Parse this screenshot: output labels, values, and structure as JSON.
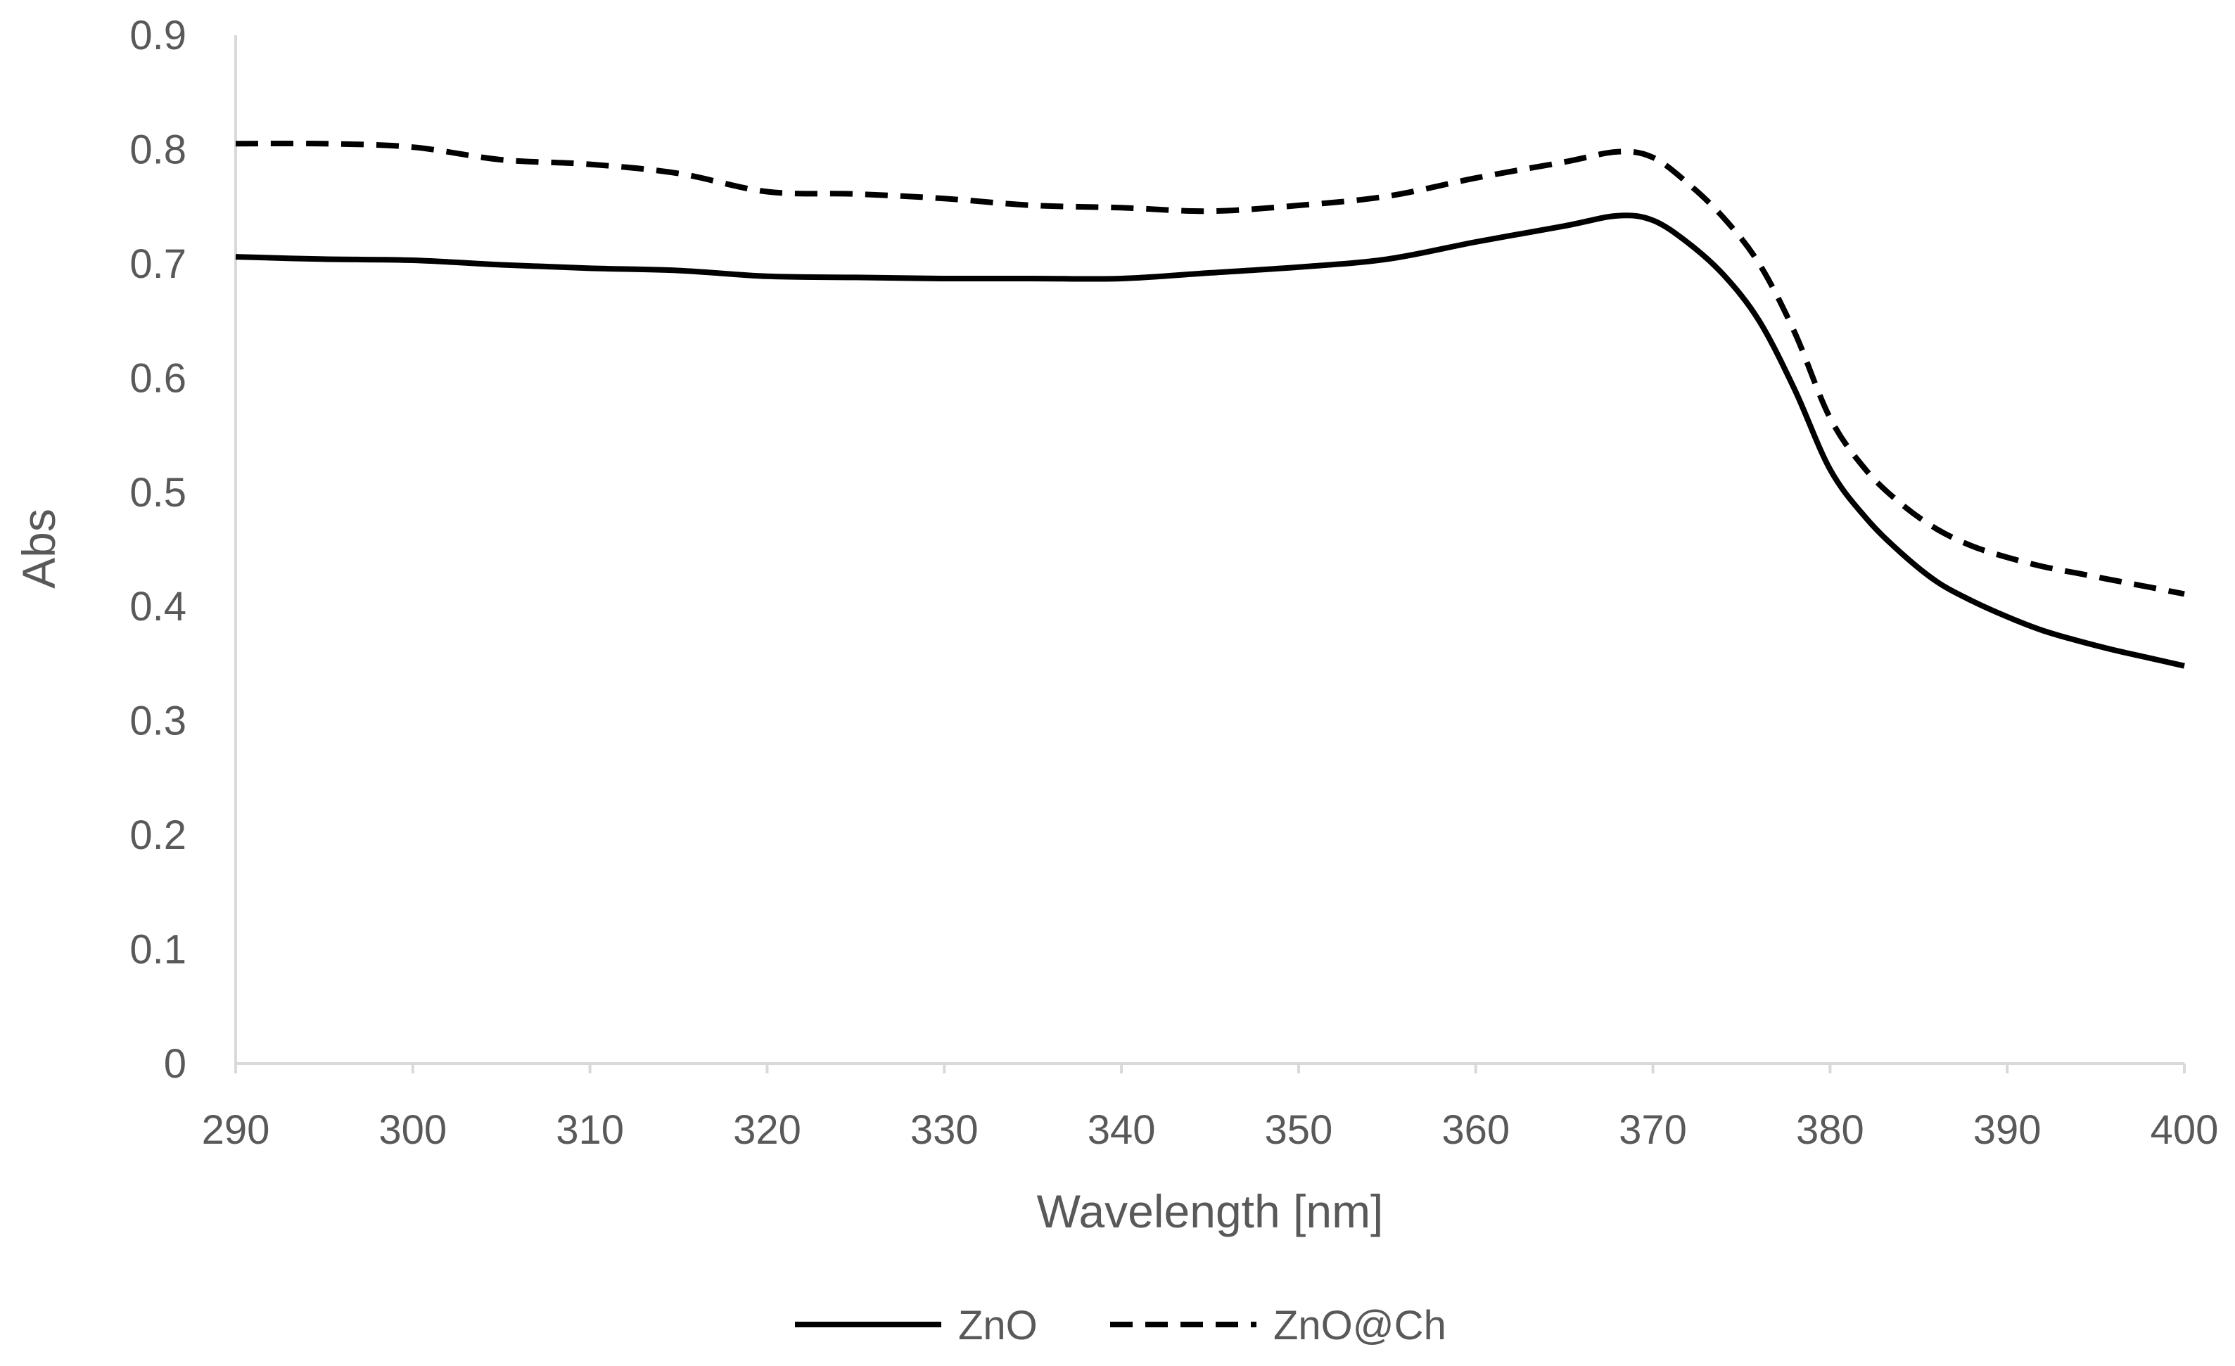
{
  "chart_data": {
    "type": "line",
    "title": "",
    "xlabel": "Wavelength [nm]",
    "ylabel": "Abs",
    "xlim": [
      290,
      400
    ],
    "ylim": [
      0,
      0.9
    ],
    "x_ticks": [
      290,
      300,
      310,
      320,
      330,
      340,
      350,
      360,
      370,
      380,
      390,
      400
    ],
    "y_ticks": [
      0,
      0.1,
      0.2,
      0.3,
      0.4,
      0.5,
      0.6,
      0.7,
      0.8,
      0.9
    ],
    "x_tick_labels": [
      "290",
      "300",
      "310",
      "320",
      "330",
      "340",
      "350",
      "360",
      "370",
      "380",
      "390",
      "400"
    ],
    "y_tick_labels": [
      "0",
      "0.1",
      "0.2",
      "0.3",
      "0.4",
      "0.5",
      "0.6",
      "0.7",
      "0.8",
      "0.9"
    ],
    "grid": false,
    "legend_position": "bottom",
    "series": [
      {
        "name": "ZnO",
        "style": "solid",
        "color": "#000000",
        "x": [
          290,
          295,
          300,
          305,
          310,
          315,
          320,
          325,
          330,
          335,
          340,
          345,
          350,
          355,
          360,
          365,
          368,
          370,
          372,
          374,
          376,
          378,
          380,
          382,
          384,
          386,
          388,
          390,
          392,
          394,
          396,
          398,
          400
        ],
        "y": [
          0.706,
          0.704,
          0.703,
          0.699,
          0.696,
          0.694,
          0.689,
          0.688,
          0.687,
          0.687,
          0.687,
          0.692,
          0.697,
          0.704,
          0.719,
          0.733,
          0.742,
          0.738,
          0.718,
          0.69,
          0.65,
          0.59,
          0.52,
          0.478,
          0.447,
          0.422,
          0.405,
          0.391,
          0.379,
          0.37,
          0.362,
          0.355,
          0.348
        ]
      },
      {
        "name": "ZnO@Ch",
        "style": "dashed",
        "color": "#000000",
        "x": [
          290,
          295,
          300,
          305,
          310,
          315,
          320,
          325,
          330,
          335,
          340,
          345,
          350,
          355,
          360,
          365,
          368,
          370,
          372,
          374,
          376,
          378,
          380,
          382,
          384,
          386,
          388,
          390,
          392,
          394,
          396,
          398,
          400
        ],
        "y": [
          0.805,
          0.805,
          0.802,
          0.791,
          0.787,
          0.779,
          0.763,
          0.761,
          0.757,
          0.751,
          0.749,
          0.746,
          0.751,
          0.759,
          0.775,
          0.789,
          0.798,
          0.793,
          0.77,
          0.74,
          0.7,
          0.64,
          0.565,
          0.52,
          0.49,
          0.468,
          0.453,
          0.443,
          0.435,
          0.429,
          0.423,
          0.417,
          0.411
        ]
      }
    ]
  }
}
